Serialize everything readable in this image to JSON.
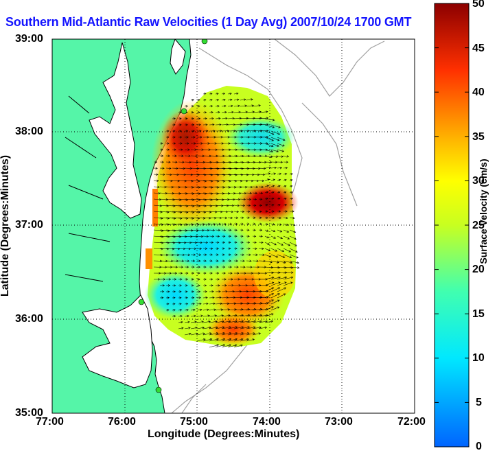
{
  "title": "Southern Mid-Atlantic Raw Velocities (1 Day Avg) 2007/10/24 1700 GMT",
  "axes": {
    "xlabel": "Longitude (Degrees:Minutes)",
    "ylabel": "Latitude (Degrees:Minutes)",
    "xticks": [
      "77:00",
      "76:00",
      "75:00",
      "74:00",
      "73:00",
      "72:00"
    ],
    "yticks": [
      "39:00",
      "38:00",
      "37:00",
      "36:00",
      "35:00"
    ]
  },
  "colorbar": {
    "label": "Surface Velocity (cm/s)",
    "ticks": [
      "50",
      "45",
      "40",
      "35",
      "30",
      "25",
      "20",
      "15",
      "10",
      "5",
      "0"
    ],
    "min": 0,
    "max": 50
  },
  "chart_data": {
    "type": "heatmap",
    "title": "Southern Mid-Atlantic Raw Velocities (1 Day Avg) 2007/10/24 1700 GMT",
    "xlabel": "Longitude (Degrees:Minutes)",
    "ylabel": "Latitude (Degrees:Minutes)",
    "xlim": [
      -77,
      -72
    ],
    "ylim": [
      35,
      39
    ],
    "grid": true,
    "colorbar_range": [
      0,
      50
    ],
    "colorbar_label": "Surface Velocity (cm/s)",
    "colors": {
      "land": "#55f5a8",
      "ocean": "#ffffff",
      "coastline": "#000000",
      "bathymetry": "#a0a0a0",
      "station": "#33dd33",
      "vectors": "#000000"
    }
  }
}
